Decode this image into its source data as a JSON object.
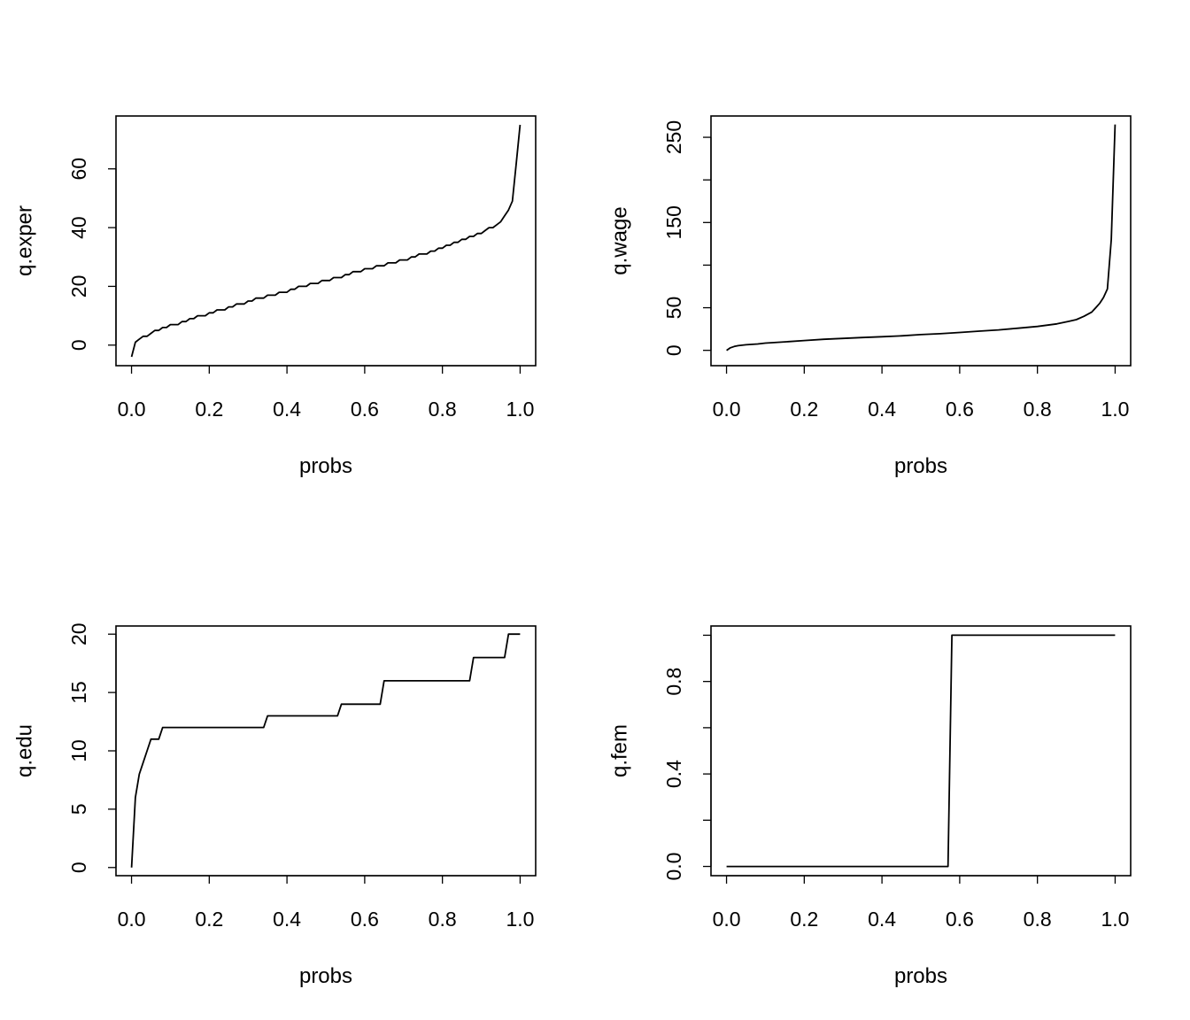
{
  "chart_data": [
    {
      "type": "line",
      "xlabel": "probs",
      "ylabel": "q.exper",
      "xlim": [
        -0.04,
        1.04
      ],
      "ylim": [
        -7,
        78
      ],
      "xticks": [
        0.0,
        0.2,
        0.4,
        0.6,
        0.8,
        1.0
      ],
      "xtick_labels": [
        "0.0",
        "0.2",
        "0.4",
        "0.6",
        "0.8",
        "1.0"
      ],
      "yticks": [
        0,
        20,
        40,
        60
      ],
      "ytick_labels": [
        "0",
        "20",
        "40",
        "60"
      ],
      "grid": false,
      "series": [
        {
          "x": [
            0.0,
            0.01,
            0.02,
            0.03,
            0.04,
            0.05,
            0.06,
            0.07,
            0.08,
            0.09,
            0.1,
            0.11,
            0.12,
            0.13,
            0.14,
            0.15,
            0.16,
            0.17,
            0.18,
            0.19,
            0.2,
            0.21,
            0.22,
            0.23,
            0.24,
            0.25,
            0.26,
            0.27,
            0.28,
            0.29,
            0.3,
            0.31,
            0.32,
            0.33,
            0.34,
            0.35,
            0.36,
            0.37,
            0.38,
            0.39,
            0.4,
            0.41,
            0.42,
            0.43,
            0.44,
            0.45,
            0.46,
            0.47,
            0.48,
            0.49,
            0.5,
            0.51,
            0.52,
            0.53,
            0.54,
            0.55,
            0.56,
            0.57,
            0.58,
            0.59,
            0.6,
            0.61,
            0.62,
            0.63,
            0.64,
            0.65,
            0.66,
            0.67,
            0.68,
            0.69,
            0.7,
            0.71,
            0.72,
            0.73,
            0.74,
            0.75,
            0.76,
            0.77,
            0.78,
            0.79,
            0.8,
            0.81,
            0.82,
            0.83,
            0.84,
            0.85,
            0.86,
            0.87,
            0.88,
            0.89,
            0.9,
            0.91,
            0.92,
            0.93,
            0.94,
            0.95,
            0.96,
            0.97,
            0.98,
            0.99,
            1.0
          ],
          "y": [
            -4,
            1,
            2,
            3,
            3,
            4,
            5,
            5,
            6,
            6,
            7,
            7,
            7,
            8,
            8,
            9,
            9,
            10,
            10,
            10,
            11,
            11,
            12,
            12,
            12,
            13,
            13,
            14,
            14,
            14,
            15,
            15,
            16,
            16,
            16,
            17,
            17,
            17,
            18,
            18,
            18,
            19,
            19,
            20,
            20,
            20,
            21,
            21,
            21,
            22,
            22,
            22,
            23,
            23,
            23,
            24,
            24,
            25,
            25,
            25,
            26,
            26,
            26,
            27,
            27,
            27,
            28,
            28,
            28,
            29,
            29,
            29,
            30,
            30,
            31,
            31,
            31,
            32,
            32,
            33,
            33,
            34,
            34,
            35,
            35,
            36,
            36,
            37,
            37,
            38,
            38,
            39,
            40,
            40,
            41,
            42,
            44,
            46,
            49,
            62,
            75
          ]
        }
      ]
    },
    {
      "type": "line",
      "xlabel": "probs",
      "ylabel": "q.wage",
      "xlim": [
        -0.04,
        1.04
      ],
      "ylim": [
        -18,
        275
      ],
      "xticks": [
        0.0,
        0.2,
        0.4,
        0.6,
        0.8,
        1.0
      ],
      "xtick_labels": [
        "0.0",
        "0.2",
        "0.4",
        "0.6",
        "0.8",
        "1.0"
      ],
      "yticks": [
        0,
        50,
        100,
        150,
        200,
        250
      ],
      "ytick_labels": [
        "0",
        "50",
        "",
        "150",
        "",
        "250"
      ],
      "grid": false,
      "series": [
        {
          "x": [
            0.0,
            0.01,
            0.02,
            0.03,
            0.05,
            0.08,
            0.1,
            0.15,
            0.2,
            0.25,
            0.3,
            0.35,
            0.4,
            0.45,
            0.5,
            0.55,
            0.6,
            0.65,
            0.7,
            0.75,
            0.8,
            0.85,
            0.88,
            0.9,
            0.92,
            0.94,
            0.95,
            0.96,
            0.97,
            0.98,
            0.99,
            1.0
          ],
          "y": [
            0,
            3,
            4.5,
            5.5,
            6.5,
            7.5,
            8.5,
            10,
            11.5,
            13,
            14,
            15,
            16,
            17,
            18.5,
            19.5,
            21,
            22.5,
            24,
            26,
            28,
            31,
            34,
            36,
            40,
            45,
            50,
            55,
            62,
            72,
            130,
            265
          ]
        }
      ]
    },
    {
      "type": "line",
      "xlabel": "probs",
      "ylabel": "q.edu",
      "xlim": [
        -0.04,
        1.04
      ],
      "ylim": [
        -0.7,
        20.7
      ],
      "xticks": [
        0.0,
        0.2,
        0.4,
        0.6,
        0.8,
        1.0
      ],
      "xtick_labels": [
        "0.0",
        "0.2",
        "0.4",
        "0.6",
        "0.8",
        "1.0"
      ],
      "yticks": [
        0,
        5,
        10,
        15,
        20
      ],
      "ytick_labels": [
        "0",
        "5",
        "10",
        "15",
        "20"
      ],
      "grid": false,
      "series": [
        {
          "x": [
            0.0,
            0.01,
            0.02,
            0.03,
            0.04,
            0.05,
            0.06,
            0.07,
            0.08,
            0.34,
            0.35,
            0.53,
            0.54,
            0.64,
            0.65,
            0.87,
            0.88,
            0.96,
            0.97,
            1.0
          ],
          "y": [
            0,
            6,
            8,
            9,
            10,
            11,
            11,
            11,
            12,
            12,
            13,
            13,
            14,
            14,
            16,
            16,
            18,
            18,
            20,
            20
          ]
        }
      ]
    },
    {
      "type": "line",
      "xlabel": "probs",
      "ylabel": "q.fem",
      "xlim": [
        -0.04,
        1.04
      ],
      "ylim": [
        -0.04,
        1.04
      ],
      "xticks": [
        0.0,
        0.2,
        0.4,
        0.6,
        0.8,
        1.0
      ],
      "xtick_labels": [
        "0.0",
        "0.2",
        "0.4",
        "0.6",
        "0.8",
        "1.0"
      ],
      "yticks": [
        0.0,
        0.2,
        0.4,
        0.6,
        0.8,
        1.0
      ],
      "ytick_labels": [
        "0.0",
        "",
        "0.4",
        "",
        "0.8",
        ""
      ],
      "grid": false,
      "series": [
        {
          "x": [
            0.0,
            0.57,
            0.58,
            1.0
          ],
          "y": [
            0,
            0,
            1,
            1
          ]
        }
      ]
    }
  ]
}
